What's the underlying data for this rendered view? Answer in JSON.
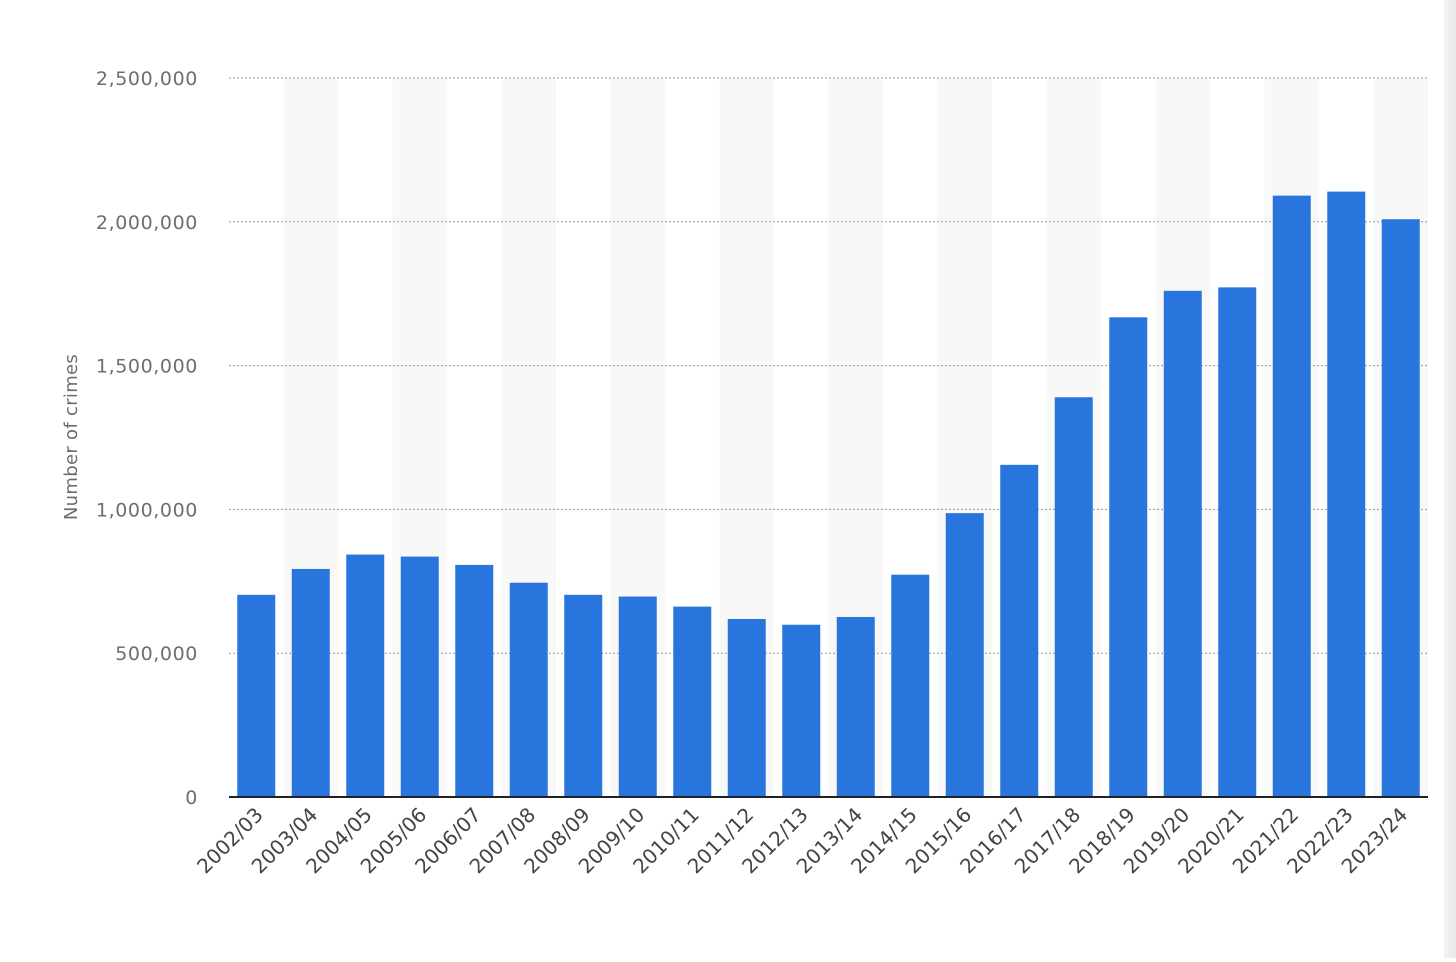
{
  "chart_data": {
    "type": "bar",
    "title": "",
    "xlabel": "",
    "ylabel": "Number of crimes",
    "ylim": [
      0,
      2500000
    ],
    "yticks": [
      0,
      500000,
      1000000,
      1500000,
      2000000,
      2500000
    ],
    "ytick_labels": [
      "0",
      "500,000",
      "1,000,000",
      "1,500,000",
      "2,000,000",
      "2,500,000"
    ],
    "categories": [
      "2002/03",
      "2003/04",
      "2004/05",
      "2005/06",
      "2006/07",
      "2007/08",
      "2008/09",
      "2009/10",
      "2010/11",
      "2011/12",
      "2012/13",
      "2013/14",
      "2014/15",
      "2015/16",
      "2016/17",
      "2017/18",
      "2018/19",
      "2019/20",
      "2020/21",
      "2021/22",
      "2022/23",
      "2023/24"
    ],
    "values": [
      703000,
      793000,
      843000,
      836000,
      807000,
      745000,
      703000,
      697000,
      662000,
      619000,
      599000,
      626000,
      773000,
      987000,
      1155000,
      1390000,
      1668000,
      1760000,
      1772000,
      2091000,
      2105000,
      2009000
    ],
    "grid": true,
    "colors": {
      "bar": "#2876dd",
      "grid": "#9a9a9a",
      "band": "#f8f8f8",
      "axis": "#222222"
    }
  }
}
